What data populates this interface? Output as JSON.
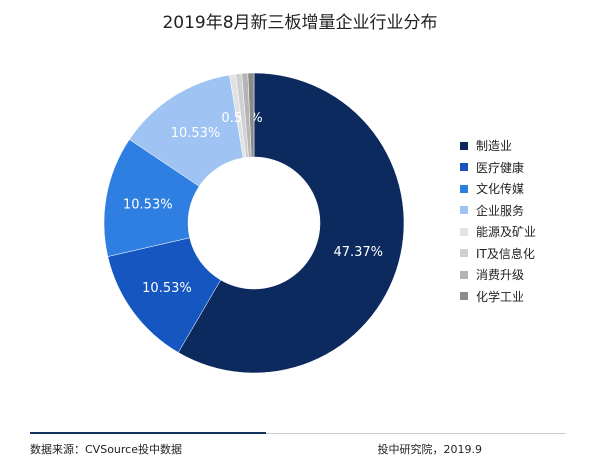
{
  "chart_data": {
    "type": "pie",
    "title": "2019年8月新三板增量企业行业分布",
    "categories": [
      "制造业",
      "医疗健康",
      "文化传媒",
      "企业服务",
      "能源及矿业",
      "IT及信息化",
      "消费升级",
      "化学工业"
    ],
    "values": [
      47.37,
      10.53,
      10.53,
      10.53,
      0.53,
      0.53,
      0.53,
      0.53
    ],
    "data_labels": [
      "47.37%",
      "10.53%",
      "10.53%",
      "10.53%",
      "0.53%",
      "",
      "",
      ""
    ],
    "colors": [
      "#0d2a5e",
      "#1656c0",
      "#2f7ee2",
      "#9fc4f4",
      "#e2e2e2",
      "#d0d0d0",
      "#b4b4b4",
      "#8a8a8a"
    ],
    "legend_position": "right"
  },
  "footer": {
    "source": "数据来源：CVSource投中数据",
    "org": "投中研究院，2019.9"
  }
}
